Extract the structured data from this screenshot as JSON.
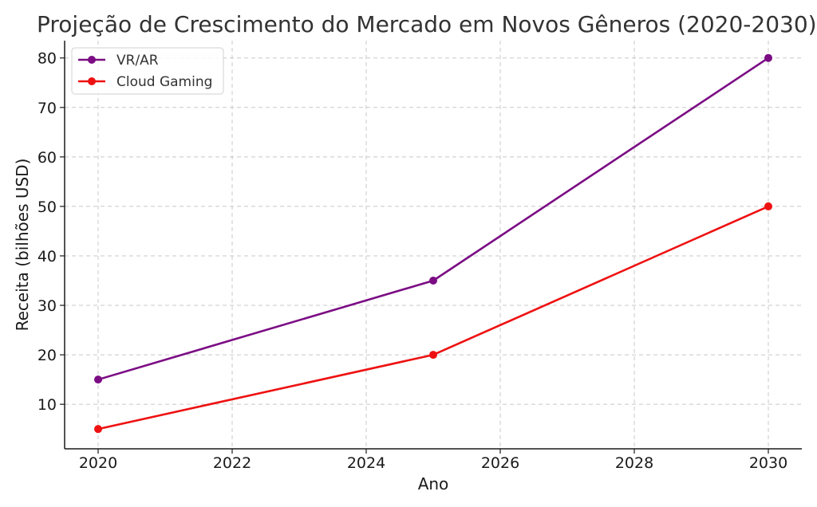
{
  "chart_data": {
    "type": "line",
    "title": "Projeção de Crescimento do Mercado em Novos Gêneros (2020-2030)",
    "xlabel": "Ano",
    "ylabel": "Receita (bilhões USD)",
    "xlim": [
      2019.5,
      2030.5
    ],
    "ylim": [
      1,
      83.5
    ],
    "xticks": [
      2020,
      2022,
      2024,
      2026,
      2028,
      2030
    ],
    "yticks": [
      10,
      20,
      30,
      40,
      50,
      60,
      70,
      80
    ],
    "grid": true,
    "legend_position": "top-left",
    "series": [
      {
        "name": "VR/AR",
        "color": "#7b0c84",
        "x": [
          2020,
          2025,
          2030
        ],
        "y": [
          15,
          35,
          80
        ]
      },
      {
        "name": "Cloud Gaming",
        "color": "#ee1111",
        "x": [
          2020,
          2025,
          2030
        ],
        "y": [
          5,
          20,
          50
        ]
      }
    ]
  }
}
